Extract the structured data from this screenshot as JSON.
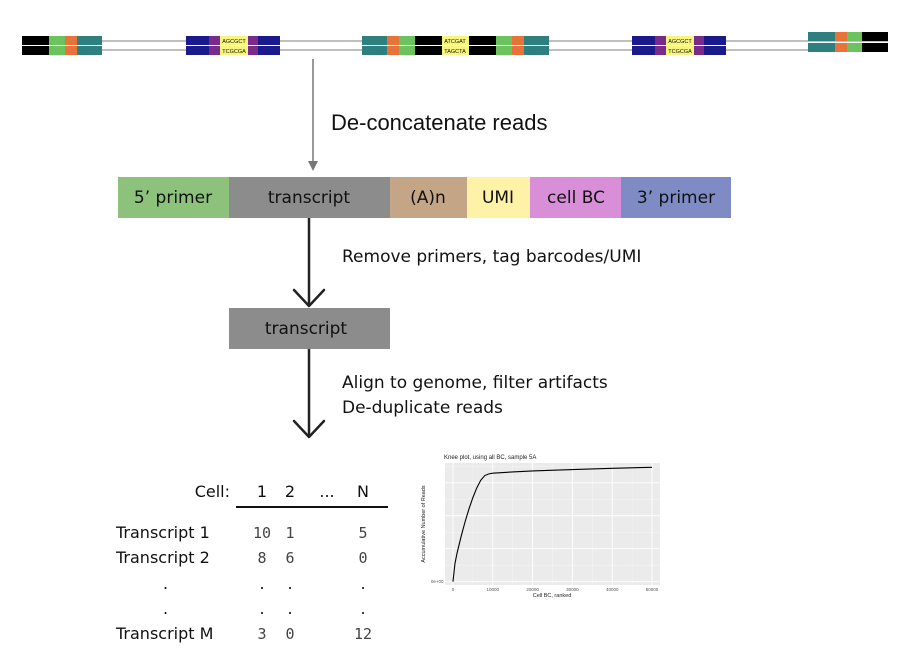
{
  "steps": {
    "deconcatenate": "De-concatenate reads",
    "remove_primers": "Remove primers, tag barcodes/UMI",
    "align": "Align to genome, filter artifacts",
    "dedup": "De-duplicate reads"
  },
  "reads": {
    "adapters": [
      {
        "top": "AGCGCT",
        "bottom": "TCGCGA"
      },
      {
        "top": "ATCGAT",
        "bottom": "TAGCTA"
      },
      {
        "top": "AGCGCT",
        "bottom": "TCGCGA"
      }
    ]
  },
  "read_structure": [
    {
      "label": "5’ primer",
      "color": "#8cc27c"
    },
    {
      "label": "transcript",
      "color": "#8c8c8c"
    },
    {
      "label": "(A)n",
      "color": "#c4a585"
    },
    {
      "label": "UMI",
      "color": "#fdf2a6"
    },
    {
      "label": "cell BC",
      "color": "#d98fd8"
    },
    {
      "label": "3’ primer",
      "color": "#7f8bc4"
    }
  ],
  "transcript_box": {
    "label": "transcript",
    "color": "#8c8c8c"
  },
  "matrix": {
    "cell_label": "Cell:",
    "columns": [
      "1",
      "2",
      "...",
      "N"
    ],
    "rows": [
      {
        "label": "Transcript 1",
        "values": [
          "10",
          "1",
          "",
          "5"
        ]
      },
      {
        "label": "Transcript 2",
        "values": [
          "8",
          "6",
          "",
          "0"
        ]
      },
      {
        "label": ".",
        "values": [
          ".",
          ".",
          "",
          "."
        ]
      },
      {
        "label": ".",
        "values": [
          ".",
          ".",
          "",
          "."
        ]
      },
      {
        "label": "Transcript M",
        "values": [
          "3",
          "0",
          "",
          "12"
        ]
      }
    ]
  },
  "chart_data": {
    "type": "line",
    "title": "Knee plot, using all BC, sample 5A",
    "xlabel": "Cell BC, ranked",
    "ylabel": "Accumulative Number of Reads",
    "x_ticks": [
      "0",
      "10000",
      "20000",
      "30000",
      "40000",
      "50000"
    ],
    "y_ticks": [
      "0e+00",
      "",
      "",
      ""
    ],
    "xlim": [
      -2000,
      52000
    ],
    "ylim": [
      -0.1,
      3.6
    ],
    "grid": true,
    "series": [
      {
        "x": [
          0,
          500,
          1000,
          2000,
          3000,
          4000,
          5000,
          6000,
          7000,
          8000,
          9000,
          10000,
          15000,
          20000,
          30000,
          40000,
          50000
        ],
        "y": [
          0,
          0.55,
          0.85,
          1.35,
          1.8,
          2.2,
          2.55,
          2.85,
          3.08,
          3.22,
          3.27,
          3.29,
          3.33,
          3.36,
          3.4,
          3.44,
          3.47
        ]
      }
    ],
    "line_color": "#000000"
  }
}
